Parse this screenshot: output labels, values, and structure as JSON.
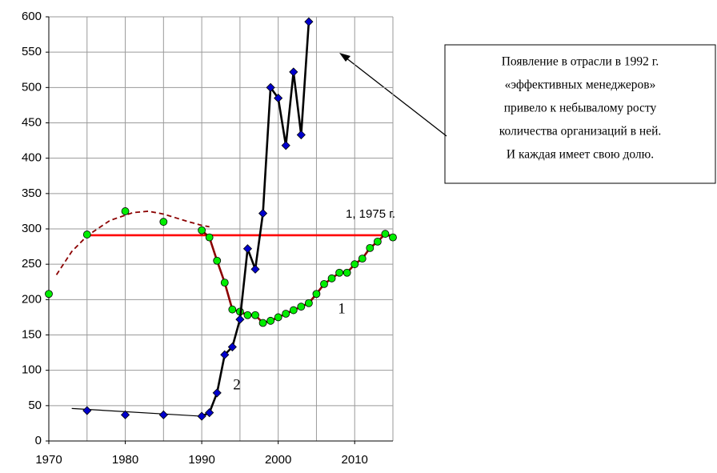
{
  "chart_data": {
    "type": "line",
    "xlim": [
      1970,
      2015
    ],
    "xticks": [
      1970,
      1980,
      1990,
      2000,
      2010
    ],
    "xgrid": [
      1970,
      1975,
      1980,
      1985,
      1990,
      1995,
      2000,
      2005,
      2010,
      2015
    ],
    "ylim": [
      0,
      600
    ],
    "yticks": [
      0,
      50,
      100,
      150,
      200,
      250,
      300,
      350,
      400,
      450,
      500,
      550,
      600
    ],
    "grid": true,
    "series": [
      {
        "color": "#8b0000",
        "style": "dashed",
        "marker": "none",
        "x": [
          1971,
          1973,
          1975,
          1978,
          1981,
          1983,
          1985,
          1988,
          1990,
          1991
        ],
        "values": [
          235,
          268,
          290,
          312,
          323,
          325,
          321,
          311,
          305,
          303
        ]
      },
      {
        "color": "#000000",
        "style": "thin",
        "marker": "none",
        "x": [
          1973,
          1990
        ],
        "values": [
          46,
          35
        ]
      },
      {
        "color": "#ff0000",
        "style": "solid",
        "marker": "none",
        "x": [
          1975,
          2015
        ],
        "values": [
          291,
          291
        ]
      },
      {
        "color": "#00ee00",
        "style": "none",
        "marker": "circle",
        "x": [
          1970,
          1975,
          1980,
          1985
        ],
        "values": [
          208,
          292,
          325,
          310
        ]
      },
      {
        "color": "#00ee00",
        "line_color": "#8b0000",
        "style": "solid",
        "marker": "circle",
        "x": [
          1990,
          1991,
          1992,
          1993,
          1994,
          1995,
          1996,
          1997,
          1998,
          1999,
          2000,
          2001,
          2002,
          2003,
          2004,
          2005,
          2006,
          2007,
          2008,
          2009,
          2010,
          2011,
          2012,
          2013,
          2014,
          2015
        ],
        "values": [
          298,
          288,
          255,
          224,
          186,
          183,
          178,
          178,
          167,
          170,
          175,
          180,
          185,
          190,
          195,
          208,
          222,
          230,
          238,
          238,
          250,
          258,
          273,
          282,
          293,
          288
        ]
      },
      {
        "color": "#0000cc",
        "style": "none",
        "marker": "diamond",
        "x": [
          1975,
          1980,
          1985
        ],
        "values": [
          43,
          37,
          37
        ]
      },
      {
        "color": "#0000cc",
        "line_color": "#000000",
        "style": "solid",
        "marker": "diamond",
        "x": [
          1990,
          1991,
          1992,
          1993,
          1994,
          1995,
          1996,
          1997,
          1998,
          1999,
          2000,
          2001,
          2002,
          2003,
          2004
        ],
        "values": [
          35,
          40,
          68,
          122,
          133,
          172,
          272,
          243,
          322,
          500,
          485,
          418,
          522,
          433,
          593
        ]
      }
    ],
    "annotations": [
      "1, 1975 г.",
      "1",
      "2"
    ],
    "note": [
      "Появление в отрасли в 1992 г.",
      "«эффективных менеджеров»",
      "привело к небывалому росту",
      "количества организаций в ней.",
      "И каждая имеет свою долю."
    ]
  }
}
